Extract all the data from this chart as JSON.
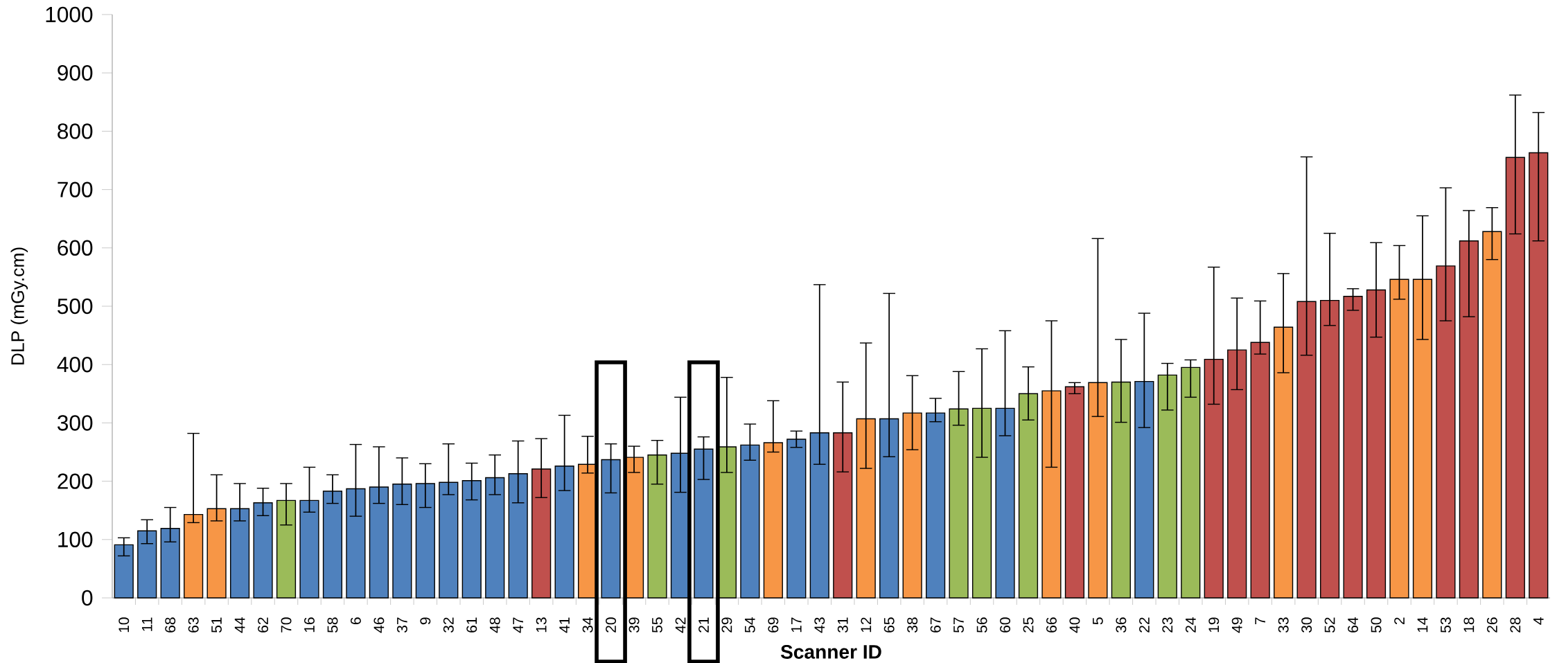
{
  "chart_data": {
    "type": "bar",
    "xlabel": "Scanner ID",
    "ylabel": "DLP (mGy.cm)",
    "categories": [
      "10",
      "11",
      "68",
      "63",
      "51",
      "44",
      "62",
      "70",
      "16",
      "58",
      "6",
      "46",
      "37",
      "9",
      "32",
      "61",
      "48",
      "47",
      "13",
      "41",
      "34",
      "20",
      "39",
      "55",
      "42",
      "21",
      "29",
      "54",
      "69",
      "17",
      "43",
      "31",
      "12",
      "65",
      "38",
      "67",
      "57",
      "56",
      "60",
      "25",
      "66",
      "40",
      "5",
      "36",
      "22",
      "23",
      "24",
      "19",
      "49",
      "7",
      "33",
      "30",
      "52",
      "64",
      "50",
      "2",
      "14",
      "53",
      "18",
      "26",
      "28",
      "4"
    ],
    "values": [
      91,
      115,
      119,
      143,
      153,
      153,
      163,
      167,
      167,
      183,
      187,
      190,
      195,
      196,
      198,
      201,
      206,
      213,
      221,
      226,
      229,
      237,
      241,
      245,
      248,
      255,
      259,
      262,
      266,
      272,
      283,
      283,
      307,
      307,
      317,
      317,
      324,
      325,
      325,
      350,
      355,
      362,
      369,
      370,
      371,
      382,
      395,
      409,
      425,
      438,
      464,
      508,
      510,
      517,
      528,
      546,
      546,
      569,
      612,
      628,
      755,
      763
    ],
    "errors": [
      [
        72,
        103
      ],
      [
        93,
        134
      ],
      [
        96,
        155
      ],
      [
        129,
        282
      ],
      [
        132,
        211
      ],
      [
        132,
        196
      ],
      [
        141,
        188
      ],
      [
        125,
        196
      ],
      [
        147,
        224
      ],
      [
        162,
        211
      ],
      [
        140,
        263
      ],
      [
        162,
        259
      ],
      [
        160,
        240
      ],
      [
        155,
        230
      ],
      [
        177,
        264
      ],
      [
        168,
        231
      ],
      [
        177,
        245
      ],
      [
        163,
        269
      ],
      [
        172,
        273
      ],
      [
        184,
        313
      ],
      [
        214,
        277
      ],
      [
        180,
        264
      ],
      [
        215,
        260
      ],
      [
        195,
        270
      ],
      [
        181,
        344
      ],
      [
        203,
        276
      ],
      [
        215,
        378
      ],
      [
        236,
        298
      ],
      [
        250,
        338
      ],
      [
        258,
        286
      ],
      [
        229,
        537
      ],
      [
        216,
        370
      ],
      [
        222,
        437
      ],
      [
        242,
        522
      ],
      [
        254,
        381
      ],
      [
        302,
        342
      ],
      [
        296,
        388
      ],
      [
        241,
        427
      ],
      [
        278,
        458
      ],
      [
        305,
        396
      ],
      [
        224,
        475
      ],
      [
        350,
        369
      ],
      [
        311,
        616
      ],
      [
        301,
        443
      ],
      [
        292,
        488
      ],
      [
        322,
        402
      ],
      [
        344,
        408
      ],
      [
        332,
        567
      ],
      [
        357,
        514
      ],
      [
        418,
        509
      ],
      [
        386,
        556
      ],
      [
        416,
        756
      ],
      [
        467,
        625
      ],
      [
        493,
        530
      ],
      [
        447,
        609
      ],
      [
        512,
        604
      ],
      [
        443,
        655
      ],
      [
        475,
        703
      ],
      [
        482,
        664
      ],
      [
        580,
        669
      ],
      [
        624,
        862
      ],
      [
        612,
        832
      ]
    ],
    "colors": [
      "#4f81bd",
      "#4f81bd",
      "#4f81bd",
      "#f79646",
      "#f79646",
      "#4f81bd",
      "#4f81bd",
      "#9bbb59",
      "#4f81bd",
      "#4f81bd",
      "#4f81bd",
      "#4f81bd",
      "#4f81bd",
      "#4f81bd",
      "#4f81bd",
      "#4f81bd",
      "#4f81bd",
      "#4f81bd",
      "#c0504d",
      "#4f81bd",
      "#f79646",
      "#4f81bd",
      "#f79646",
      "#9bbb59",
      "#4f81bd",
      "#4f81bd",
      "#9bbb59",
      "#4f81bd",
      "#f79646",
      "#4f81bd",
      "#4f81bd",
      "#c0504d",
      "#f79646",
      "#4f81bd",
      "#f79646",
      "#4f81bd",
      "#9bbb59",
      "#9bbb59",
      "#4f81bd",
      "#9bbb59",
      "#f79646",
      "#c0504d",
      "#f79646",
      "#9bbb59",
      "#4f81bd",
      "#9bbb59",
      "#9bbb59",
      "#c0504d",
      "#c0504d",
      "#c0504d",
      "#f79646",
      "#c0504d",
      "#c0504d",
      "#c0504d",
      "#c0504d",
      "#f79646",
      "#f79646",
      "#c0504d",
      "#c0504d",
      "#f79646",
      "#c0504d",
      "#c0504d"
    ],
    "ylim": [
      0,
      1000
    ],
    "yticks": [
      0,
      100,
      200,
      300,
      400,
      500,
      600,
      700,
      800,
      900,
      1000
    ],
    "grid": false
  }
}
